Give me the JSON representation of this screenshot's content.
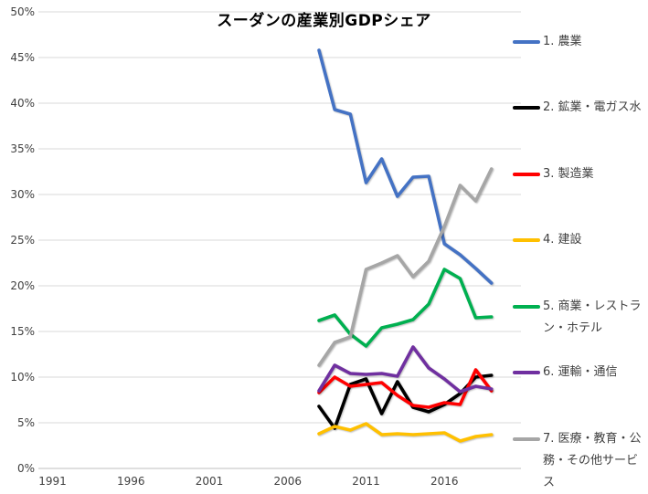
{
  "chart_data": {
    "type": "line",
    "title": "スーダンの産業別GDPシェア",
    "xlabel": "",
    "ylabel": "",
    "x": [
      2008,
      2009,
      2010,
      2011,
      2012,
      2013,
      2014,
      2015,
      2016,
      2017,
      2018,
      2019
    ],
    "series": [
      {
        "name": "1. 農業",
        "color": "#4472C4",
        "values": [
          45.8,
          39.3,
          38.8,
          31.3,
          33.9,
          29.8,
          31.9,
          32.0,
          24.6,
          23.4,
          21.9,
          20.3
        ]
      },
      {
        "name": "2. 鉱業・電ガス水",
        "color": "#000000",
        "values": [
          6.8,
          4.4,
          9.2,
          9.8,
          6.0,
          9.5,
          6.7,
          6.2,
          7.0,
          8.2,
          10.0,
          10.2
        ]
      },
      {
        "name": "3. 製造業",
        "color": "#FF0000",
        "values": [
          8.3,
          10.0,
          9.0,
          9.2,
          9.4,
          8.0,
          6.9,
          6.7,
          7.2,
          7.0,
          10.8,
          8.5
        ]
      },
      {
        "name": "4. 建設",
        "color": "#FFC000",
        "values": [
          3.8,
          4.6,
          4.2,
          4.9,
          3.7,
          3.8,
          3.7,
          3.8,
          3.9,
          3.0,
          3.5,
          3.7
        ]
      },
      {
        "name": "5. 商業・レストラン・ホテル",
        "color": "#00B050",
        "values": [
          16.2,
          16.8,
          14.7,
          13.4,
          15.4,
          15.8,
          16.3,
          18.0,
          21.8,
          20.8,
          16.5,
          16.6
        ]
      },
      {
        "name": "6. 運輸・通信",
        "color": "#7030A0",
        "values": [
          8.5,
          11.3,
          10.4,
          10.3,
          10.4,
          10.1,
          13.3,
          11.0,
          9.8,
          8.4,
          9.0,
          8.7
        ]
      },
      {
        "name": "7. 医療・教育・公務・その他サービス",
        "color": "#A6A6A6",
        "values": [
          11.3,
          13.8,
          14.4,
          21.8,
          22.5,
          23.3,
          21.0,
          22.7,
          26.5,
          31.0,
          29.3,
          32.8
        ]
      }
    ],
    "yticks": [
      "0%",
      "5%",
      "10%",
      "15%",
      "20%",
      "25%",
      "30%",
      "35%",
      "40%",
      "45%",
      "50%"
    ],
    "xticks": [
      "1991",
      "1996",
      "2001",
      "2006",
      "2011",
      "2016"
    ],
    "ylim": [
      0,
      50
    ],
    "grid": "horizontal",
    "legend_position": "right"
  }
}
